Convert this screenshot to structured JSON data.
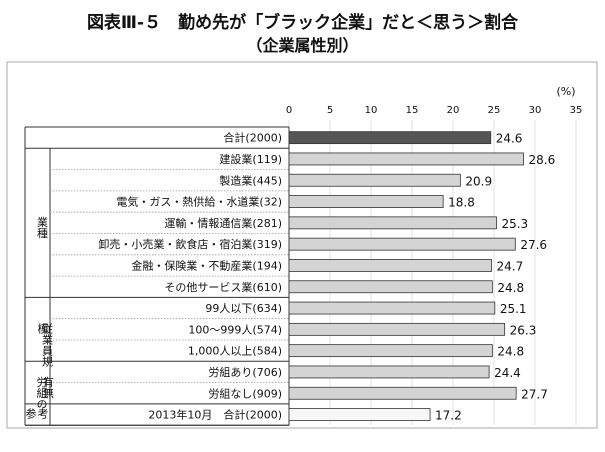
{
  "title": "図表Ⅲ-５　勤め先が「ブラック企業」だと＜思う＞割合",
  "subtitle": "（企業属性別）",
  "chart_data": {
    "type": "bar",
    "orientation": "horizontal",
    "unit": "(%)",
    "xlim": [
      0,
      35
    ],
    "ticks": [
      0,
      5,
      10,
      15,
      20,
      25,
      30,
      35
    ],
    "colors": {
      "total": "#555555",
      "category": "#d4d4d4",
      "reference": "#f7f7f7",
      "border": "#333333"
    },
    "rows": [
      {
        "label": "合計(2000)",
        "value": 24.6,
        "value_label": "24.6",
        "style": "total"
      },
      {
        "label": "建設業(119)",
        "value": 28.6,
        "value_label": "28.6",
        "style": "category"
      },
      {
        "label": "製造業(445)",
        "value": 20.9,
        "value_label": "20.9",
        "style": "category"
      },
      {
        "label": "電気・ガス・熱供給・水道業(32)",
        "value": 18.8,
        "value_label": "18.8",
        "style": "category"
      },
      {
        "label": "運輸・情報通信業(281)",
        "value": 25.3,
        "value_label": "25.3",
        "style": "category"
      },
      {
        "label": "卸売・小売業・飲食店・宿泊業(319)",
        "value": 27.6,
        "value_label": "27.6",
        "style": "category"
      },
      {
        "label": "金融・保険業・不動産業(194)",
        "value": 24.7,
        "value_label": "24.7",
        "style": "category"
      },
      {
        "label": "その他サービス業(610)",
        "value": 24.8,
        "value_label": "24.8",
        "style": "category"
      },
      {
        "label": "99人以下(634)",
        "value": 25.1,
        "value_label": "25.1",
        "style": "category"
      },
      {
        "label": "100～999人(574)",
        "value": 26.3,
        "value_label": "26.3",
        "style": "category"
      },
      {
        "label": "1,000人以上(584)",
        "value": 24.8,
        "value_label": "24.8",
        "style": "category"
      },
      {
        "label": "労組あり(706)",
        "value": 24.4,
        "value_label": "24.4",
        "style": "category"
      },
      {
        "label": "労組なし(909)",
        "value": 27.7,
        "value_label": "27.7",
        "style": "category"
      },
      {
        "label": "2013年10月　合計(2000)",
        "value": 17.2,
        "value_label": "17.2",
        "style": "reference"
      }
    ],
    "groups": [
      {
        "label": "業種",
        "lines": [
          "業種"
        ],
        "first_row": 1,
        "last_row": 7
      },
      {
        "label": "従業員規模",
        "lines": [
          "従業員規",
          "模"
        ],
        "first_row": 8,
        "last_row": 10
      },
      {
        "label": "労組の有無",
        "lines": [
          "労組の",
          "有無"
        ],
        "first_row": 11,
        "last_row": 12
      },
      {
        "label": "参考",
        "lines": [
          "参",
          "考"
        ],
        "first_row": 13,
        "last_row": 13
      }
    ]
  }
}
